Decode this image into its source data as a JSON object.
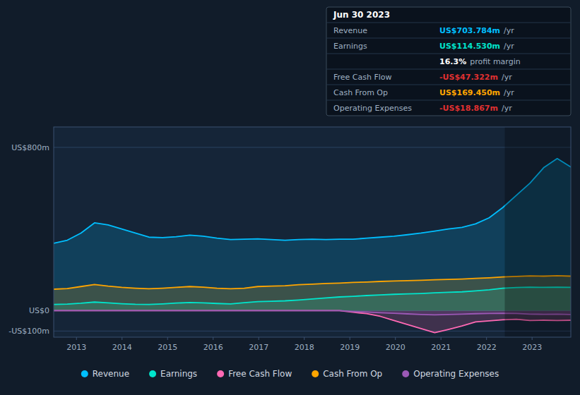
{
  "chart_data": {
    "type": "area",
    "x": [
      2012.5,
      2012.7986842105,
      2013.0973684211,
      2013.3960526316,
      2013.6947368421,
      2013.9934210526,
      2014.2921052632,
      2014.5907894737,
      2014.8894736842,
      2015.1881578947,
      2015.4868421053,
      2015.7855263158,
      2016.0842105263,
      2016.3828947368,
      2016.6815789474,
      2016.9802631579,
      2017.2789473684,
      2017.5776315789,
      2017.8763157895,
      2018.175,
      2018.4736842105,
      2018.7723684211,
      2019.0710526316,
      2019.3697368421,
      2019.6684210526,
      2019.9671052632,
      2020.2657894737,
      2020.5644736842,
      2020.8631578947,
      2021.1618421053,
      2021.4605263158,
      2021.7592105263,
      2022.0578947368,
      2022.3565789474,
      2022.6552631579,
      2022.9539473684,
      2023.2526315789,
      2023.5513157895,
      2023.85
    ],
    "xlim": [
      2012.5,
      2023.85
    ],
    "xticks": [
      2013,
      2014,
      2015,
      2016,
      2017,
      2018,
      2019,
      2020,
      2021,
      2022,
      2023
    ],
    "ylim": [
      -130,
      900
    ],
    "yticks": [
      {
        "value": -100,
        "label": "-US$100m"
      },
      {
        "value": 0,
        "label": "US$0"
      },
      {
        "value": 800,
        "label": "US$800m"
      }
    ],
    "grid": true,
    "legend": "bottom",
    "highlight_from": 2022.4,
    "series": [
      {
        "name": "Revenue",
        "color": "#00bfff",
        "values": [
          330,
          345,
          380,
          430,
          420,
          400,
          380,
          360,
          358,
          362,
          370,
          365,
          355,
          348,
          350,
          352,
          348,
          345,
          348,
          350,
          348,
          350,
          350,
          355,
          360,
          365,
          372,
          380,
          390,
          400,
          408,
          425,
          455,
          505,
          565,
          625,
          700,
          745,
          704
        ]
      },
      {
        "name": "Earnings",
        "color": "#00e5cc",
        "values": [
          30,
          32,
          36,
          42,
          38,
          34,
          31,
          30,
          33,
          37,
          40,
          38,
          35,
          33,
          39,
          44,
          46,
          48,
          52,
          57,
          62,
          67,
          70,
          74,
          77,
          80,
          82,
          84,
          87,
          90,
          92,
          97,
          102,
          110,
          113,
          115,
          114,
          115,
          114
        ]
      },
      {
        "name": "Free Cash Flow",
        "color": "#ff69b4",
        "values": [
          0,
          0,
          0,
          0,
          0,
          0,
          0,
          0,
          0,
          0,
          0,
          0,
          0,
          0,
          0,
          0,
          0,
          0,
          0,
          0,
          0,
          0,
          -8,
          -15,
          -28,
          -48,
          -68,
          -88,
          -108,
          -92,
          -75,
          -55,
          -50,
          -45,
          -42,
          -48,
          -47,
          -48,
          -47
        ]
      },
      {
        "name": "Cash From Op",
        "color": "#ffa500",
        "values": [
          105,
          108,
          118,
          128,
          120,
          114,
          110,
          107,
          110,
          114,
          118,
          115,
          110,
          107,
          110,
          118,
          120,
          122,
          127,
          130,
          133,
          135,
          138,
          140,
          143,
          145,
          147,
          149,
          151,
          153,
          155,
          158,
          161,
          165,
          168,
          170,
          169,
          171,
          169
        ]
      },
      {
        "name": "Operating Expenses",
        "color": "#9b59b6",
        "values": [
          0,
          0,
          0,
          0,
          0,
          0,
          0,
          0,
          0,
          0,
          0,
          0,
          0,
          0,
          0,
          0,
          0,
          0,
          0,
          0,
          0,
          0,
          -4,
          -7,
          -10,
          -13,
          -16,
          -19,
          -21,
          -19,
          -17,
          -15,
          -14,
          -13,
          -14,
          -17,
          -18,
          -17,
          -19
        ]
      }
    ],
    "info_box": {
      "title": "Jun 30 2023",
      "rows": [
        {
          "label": "Revenue",
          "value": "US$703.784m",
          "color": "#00bfff",
          "unit": "/yr"
        },
        {
          "label": "Earnings",
          "value": "US$114.530m",
          "color": "#00e5cc",
          "unit": "/yr"
        },
        {
          "value": "16.3%",
          "color": "#ffffff",
          "unit": "profit margin"
        },
        {
          "label": "Free Cash Flow",
          "value": "-US$47.322m",
          "color": "#e03030",
          "unit": "/yr"
        },
        {
          "label": "Cash From Op",
          "value": "US$169.450m",
          "color": "#ffa500",
          "unit": "/yr"
        },
        {
          "label": "Operating Expenses",
          "value": "-US$18.867m",
          "color": "#e03030",
          "unit": "/yr"
        }
      ]
    }
  }
}
